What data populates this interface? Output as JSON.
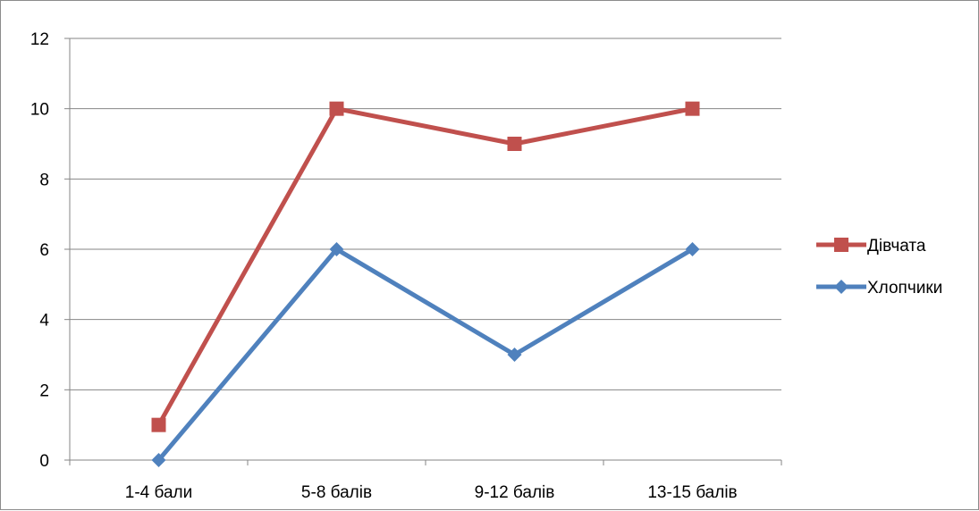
{
  "chart_data": {
    "type": "line",
    "title": "",
    "xlabel": "",
    "ylabel": "",
    "categories": [
      "1-4 бали",
      "5-8 балів",
      "9-12 балів",
      "13-15 балів"
    ],
    "ylim": [
      0,
      12
    ],
    "yticks": [
      0,
      2,
      4,
      6,
      8,
      10,
      12
    ],
    "grid": true,
    "legend_position": "right",
    "series": [
      {
        "name": "Дівчата",
        "values": [
          1,
          10,
          9,
          10
        ],
        "color": "#c0504d",
        "marker": "square"
      },
      {
        "name": "Хлопчики",
        "values": [
          0,
          6,
          3,
          6
        ],
        "color": "#4f81bd",
        "marker": "diamond"
      }
    ]
  }
}
